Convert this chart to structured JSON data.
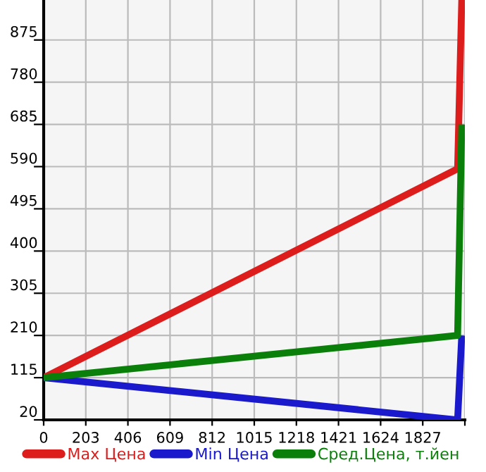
{
  "chart_data": {
    "type": "line",
    "xlim": [
      0,
      2030
    ],
    "ylim": [
      20,
      965
    ],
    "xticks": [
      0,
      203,
      406,
      609,
      812,
      1015,
      1218,
      1421,
      1624,
      1827,
      {
        "value": 2030,
        "label": null
      }
    ],
    "yticks": [
      20,
      115,
      210,
      305,
      400,
      495,
      590,
      685,
      780,
      875
    ],
    "grid": true,
    "legend": "bottom",
    "marker": "none",
    "line_style": "solid",
    "series": [
      {
        "name": "Max Цена",
        "color": "#dd1c1c",
        "x": [
          0,
          1995,
          2015
        ],
        "values": [
          115,
          585,
          965
        ]
      },
      {
        "name": "Min Цена",
        "color": "#1a1acc",
        "x": [
          0,
          1995,
          2015
        ],
        "values": [
          115,
          20,
          210
        ]
      },
      {
        "name": "Сред.Цена, т.йен",
        "color": "#0a800a",
        "x": [
          0,
          1995,
          2015
        ],
        "values": [
          115,
          210,
          685
        ]
      }
    ]
  }
}
